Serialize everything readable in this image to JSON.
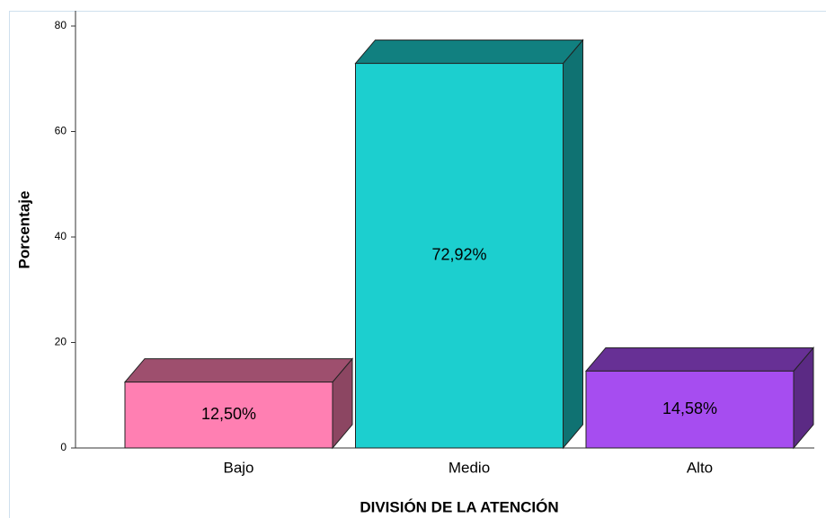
{
  "chart_data": {
    "type": "bar3d",
    "x_label": "DIVISIÓN DE LA ATENCIÓN",
    "y_label": "Porcentaje",
    "categories": [
      "Bajo",
      "Medio",
      "Alto"
    ],
    "values": [
      12.5,
      72.92,
      14.58
    ],
    "value_labels": [
      "12,50%",
      "72,92%",
      "14,58%"
    ],
    "colors": [
      "#ff7fb2",
      "#1ccfcf",
      "#a64df0"
    ],
    "ylim": [
      0,
      80
    ],
    "yticks": [
      0,
      20,
      40,
      60,
      80
    ],
    "grid": false
  }
}
